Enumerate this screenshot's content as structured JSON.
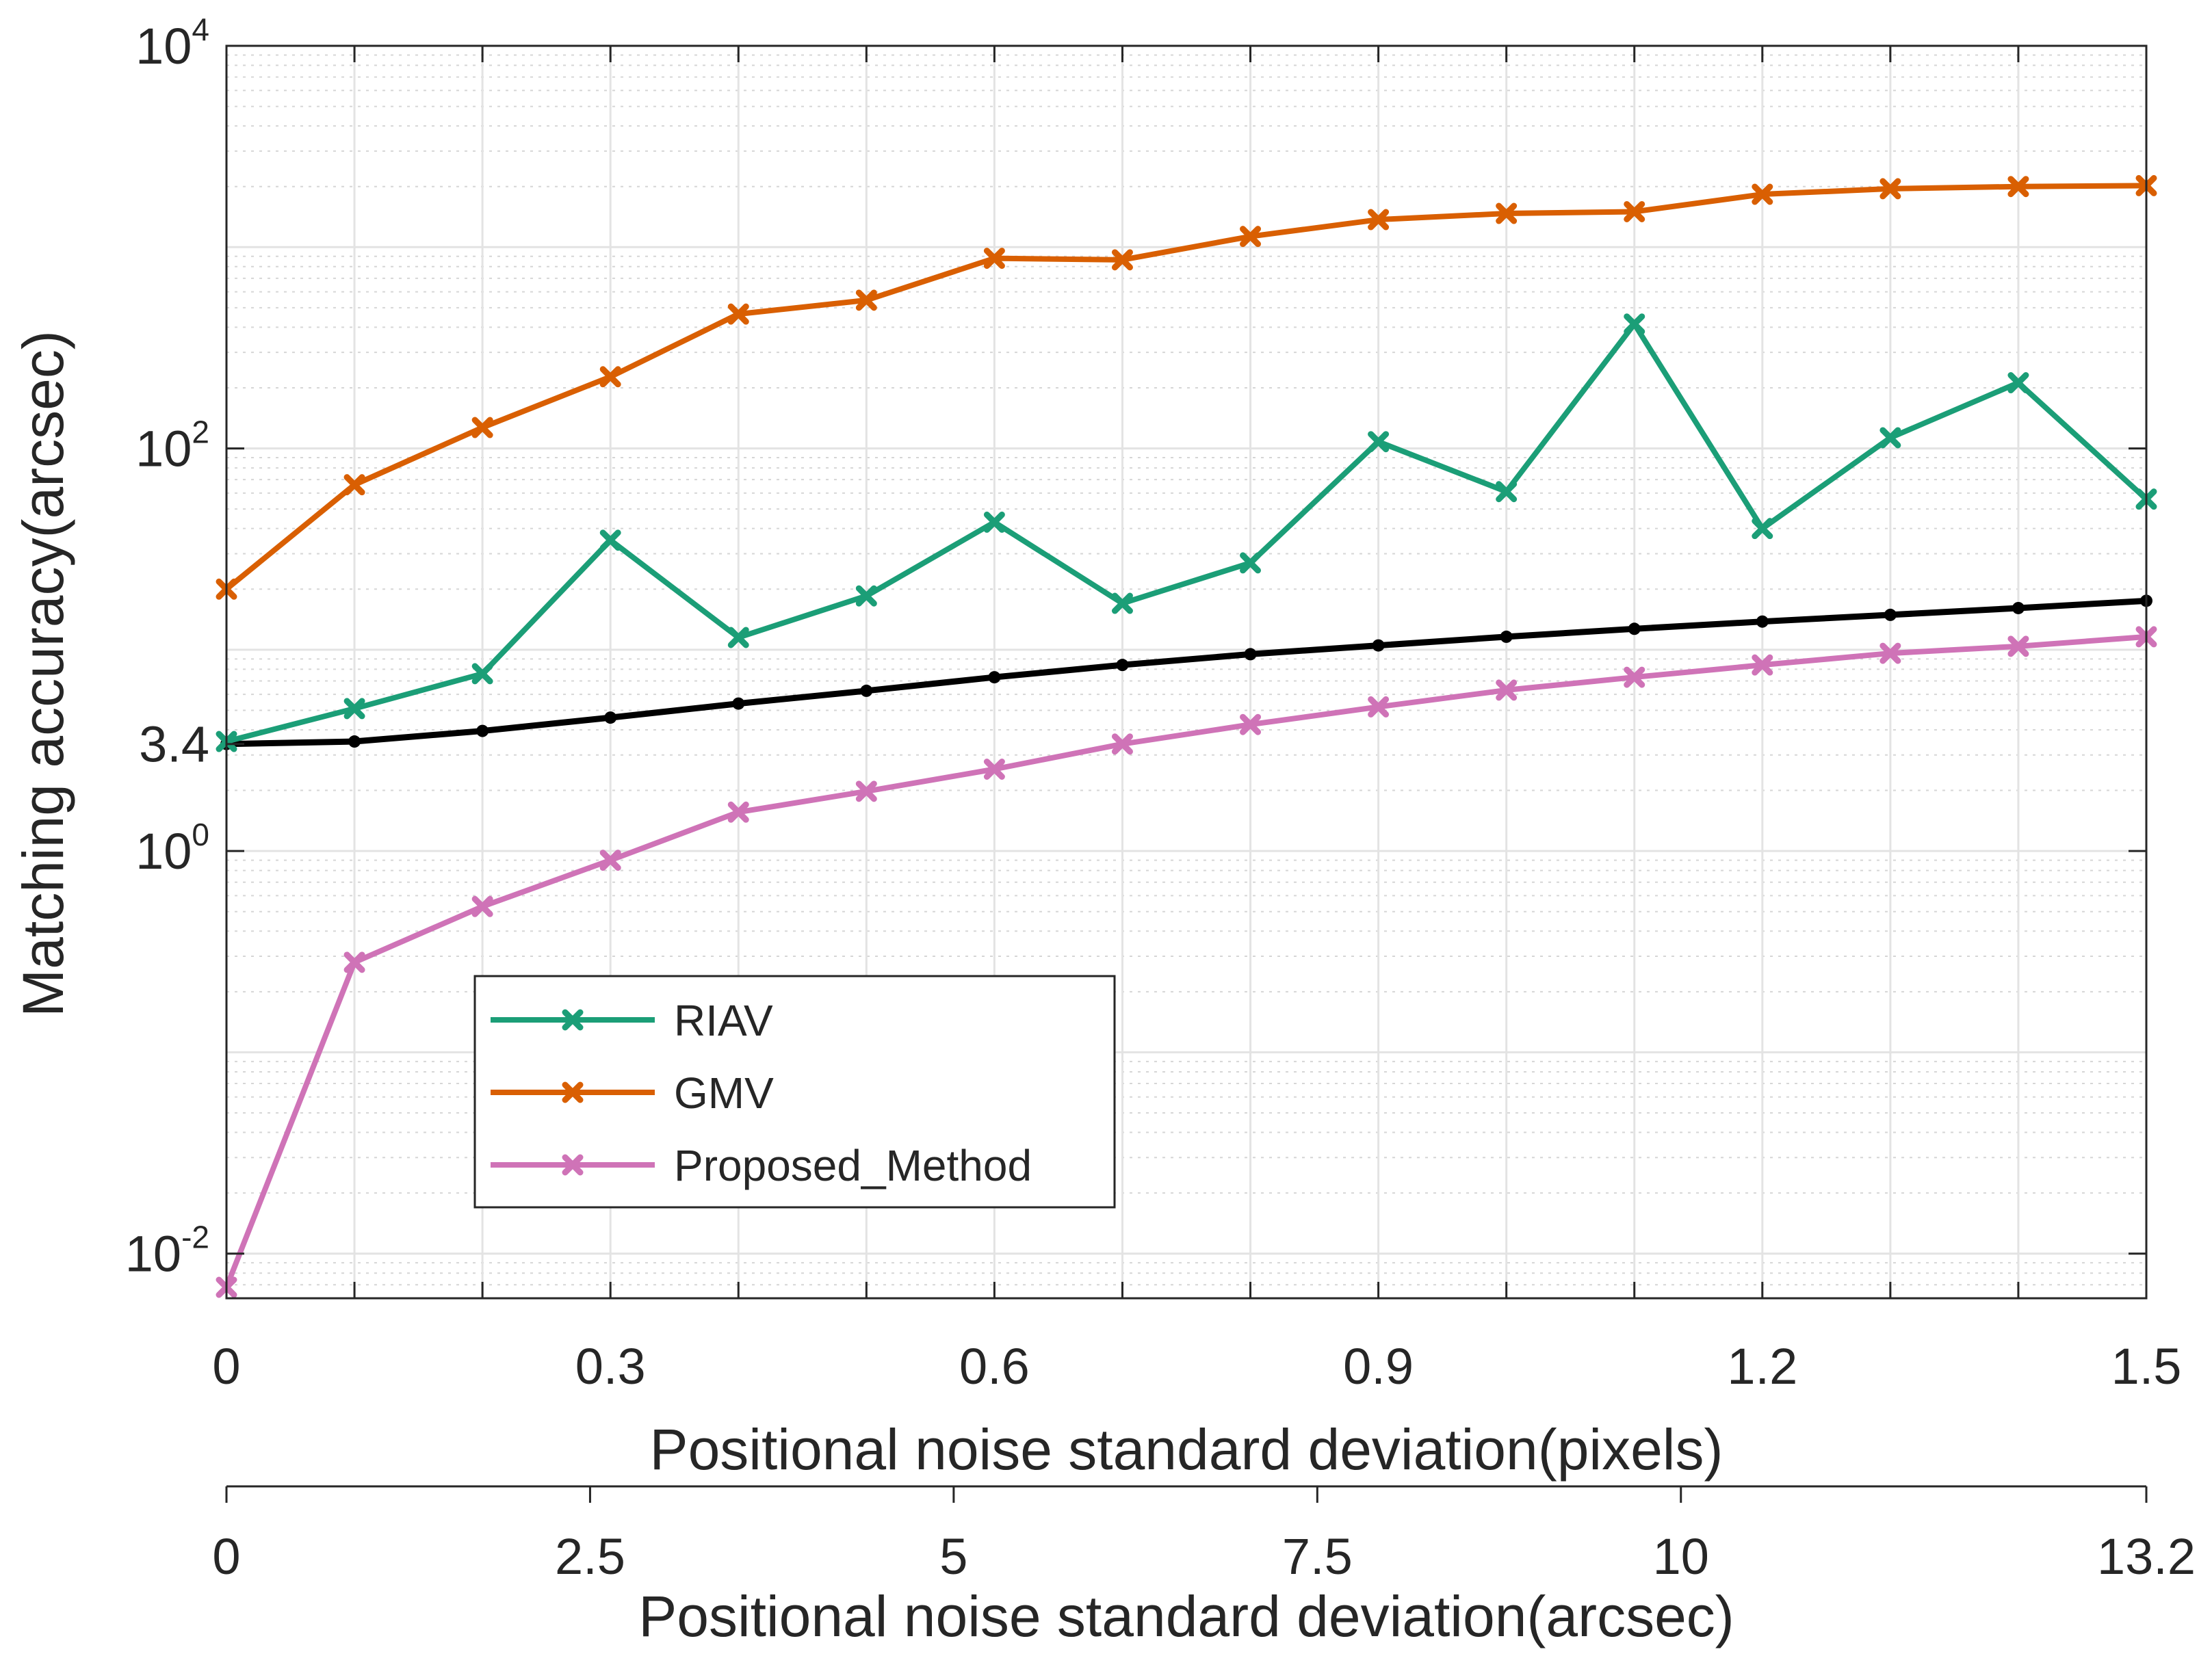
{
  "chart_data": {
    "type": "line",
    "title": "",
    "xlabel": "Positional noise standard deviation(pixels)",
    "xlabel_secondary": "Positional noise standard deviation(arcsec)",
    "ylabel": "Matching accuracy(arcsec)",
    "yscale": "log",
    "xlim": [
      0,
      1.5
    ],
    "ylim": [
      0.006,
      10000
    ],
    "grid": true,
    "legend_position": "lower-left",
    "x_ticks": [
      {
        "value": 0,
        "label": "0"
      },
      {
        "value": 0.3,
        "label": "0.3"
      },
      {
        "value": 0.6,
        "label": "0.6"
      },
      {
        "value": 0.9,
        "label": "0.9"
      },
      {
        "value": 1.2,
        "label": "1.2"
      },
      {
        "value": 1.5,
        "label": "1.5"
      }
    ],
    "x_secondary_ticks": [
      {
        "value": 0,
        "label": "0"
      },
      {
        "value": 2.5,
        "label": "2.5"
      },
      {
        "value": 5,
        "label": "5"
      },
      {
        "value": 7.5,
        "label": "7.5"
      },
      {
        "value": 10,
        "label": "10"
      },
      {
        "value": 13.2,
        "label": "13.2"
      }
    ],
    "x_secondary_range": [
      0,
      13.2
    ],
    "y_ticks": [
      {
        "value": 0.01,
        "base": "10",
        "exp": "-2"
      },
      {
        "value": 1,
        "base": "10",
        "exp": "0"
      },
      {
        "value": 100,
        "base": "10",
        "exp": "2"
      },
      {
        "value": 10000,
        "base": "10",
        "exp": "4"
      }
    ],
    "y_annotation": {
      "value": 3.4,
      "label": "3.4"
    },
    "x": [
      0,
      0.1,
      0.2,
      0.3,
      0.4,
      0.5,
      0.6,
      0.7,
      0.8,
      0.9,
      1.0,
      1.1,
      1.2,
      1.3,
      1.4,
      1.5
    ],
    "series": [
      {
        "name": "RIAV",
        "color": "#1b9e77",
        "marker": "x",
        "in_legend": true,
        "values": [
          3.5,
          5.1,
          7.6,
          35,
          11.5,
          18.5,
          43,
          17,
          27,
          108,
          61,
          415,
          40,
          113,
          212,
          56
        ]
      },
      {
        "name": "GMV",
        "color": "#d95f02",
        "marker": "x",
        "in_legend": true,
        "values": [
          20,
          66,
          127,
          227,
          465,
          545,
          880,
          865,
          1130,
          1370,
          1470,
          1500,
          1830,
          1950,
          2000,
          2020
        ]
      },
      {
        "name": "Proposed_Method",
        "color": "#cf73b7",
        "marker": "x",
        "in_legend": true,
        "values": [
          0.0068,
          0.28,
          0.53,
          0.9,
          1.56,
          1.98,
          2.55,
          3.4,
          4.25,
          5.2,
          6.3,
          7.3,
          8.4,
          9.6,
          10.4,
          11.6
        ]
      },
      {
        "name": "",
        "color": "#000000",
        "marker": "none",
        "in_legend": false,
        "values": [
          3.4,
          3.5,
          3.95,
          4.6,
          5.4,
          6.25,
          7.3,
          8.4,
          9.5,
          10.5,
          11.6,
          12.7,
          13.8,
          14.9,
          16.1,
          17.5
        ]
      }
    ]
  }
}
